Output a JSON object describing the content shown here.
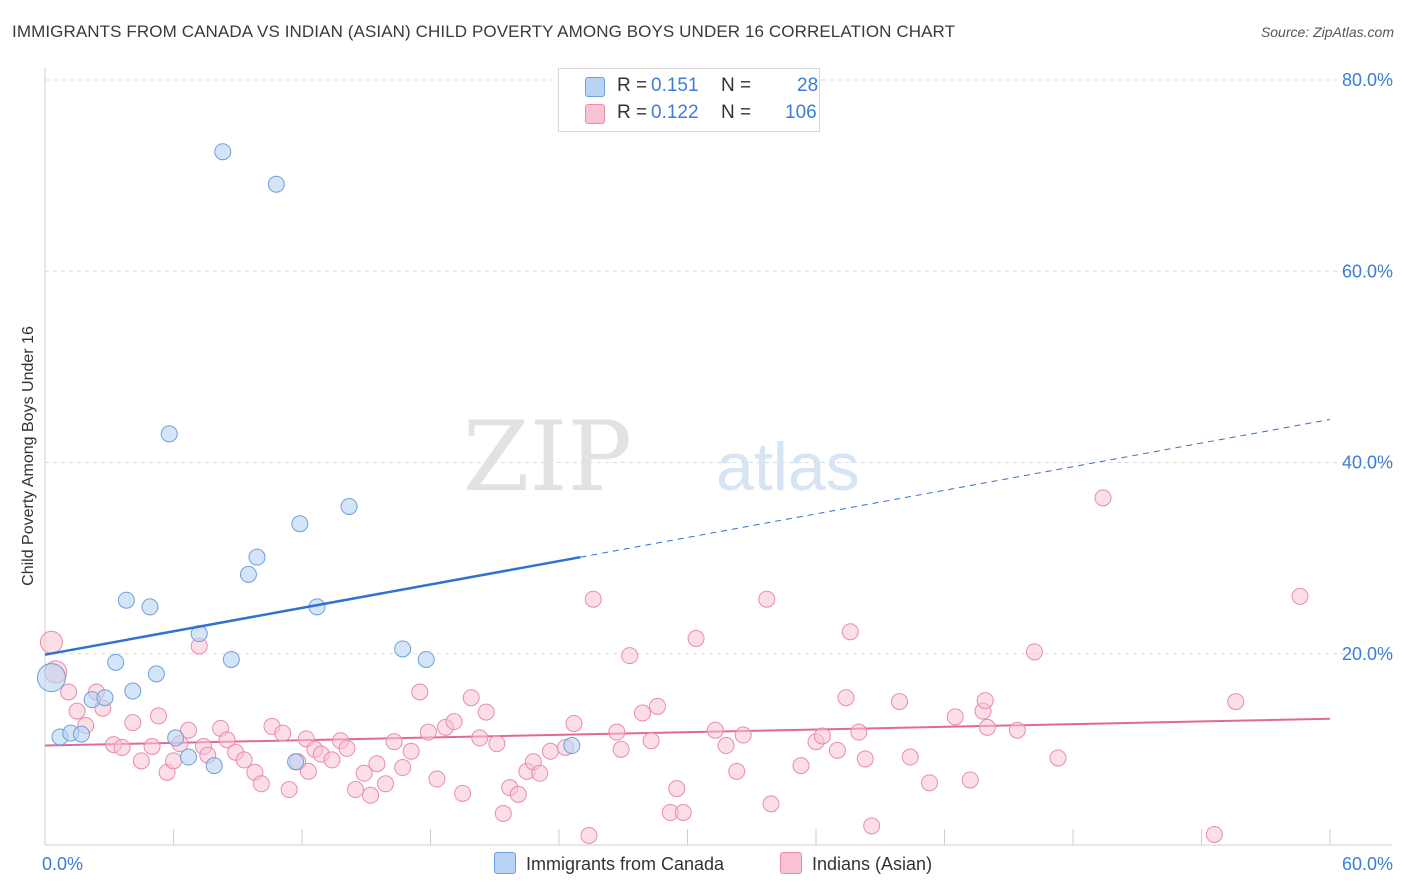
{
  "title": "IMMIGRANTS FROM CANADA VS INDIAN (ASIAN) CHILD POVERTY AMONG BOYS UNDER 16 CORRELATION CHART",
  "source": "Source: ZipAtlas.com",
  "watermark": {
    "zip": "ZIP",
    "atlas": "atlas"
  },
  "colors": {
    "series1_fill": "#b8d3f3",
    "series1_stroke": "#6f9fdc",
    "series1_line": "#2f72d0",
    "series2_fill": "#f9c3d3",
    "series2_stroke": "#e98cab",
    "series2_line": "#e2689a",
    "axis_label": "#3b7dd8",
    "grid": "#dcdcdc"
  },
  "legend": {
    "rows": [
      {
        "r_label": "R =",
        "r_value": "0.151",
        "n_label": "N =",
        "n_value": "28"
      },
      {
        "r_label": "R =",
        "r_value": "0.122",
        "n_label": "N =",
        "n_value": "106"
      }
    ]
  },
  "bottom_legend": {
    "series1": "Immigrants from Canada",
    "series2": "Indians (Asian)"
  },
  "chart_data": {
    "type": "scatter",
    "title": "IMMIGRANTS FROM CANADA VS INDIAN (ASIAN) CHILD POVERTY AMONG BOYS UNDER 16 CORRELATION CHART",
    "xlabel": "",
    "ylabel": "Child Poverty Among Boys Under 16",
    "xlim": [
      0,
      60
    ],
    "ylim": [
      0,
      80
    ],
    "x_tick_labels": [
      "0.0%",
      "60.0%"
    ],
    "y_tick_labels": [
      "20.0%",
      "40.0%",
      "60.0%",
      "80.0%"
    ],
    "y_ticks": [
      20,
      40,
      60,
      80
    ],
    "series": [
      {
        "name": "Immigrants from Canada",
        "points": [
          [
            0.3,
            17.5
          ],
          [
            0.7,
            11.3
          ],
          [
            1.2,
            11.7
          ],
          [
            1.7,
            11.6
          ],
          [
            2.2,
            15.2
          ],
          [
            2.8,
            15.4
          ],
          [
            3.3,
            19.1
          ],
          [
            3.8,
            25.6
          ],
          [
            4.1,
            16.1
          ],
          [
            4.9,
            24.9
          ],
          [
            5.2,
            17.9
          ],
          [
            5.8,
            43.0
          ],
          [
            6.1,
            11.2
          ],
          [
            6.7,
            9.2
          ],
          [
            7.2,
            22.1
          ],
          [
            7.9,
            8.3
          ],
          [
            8.3,
            72.5
          ],
          [
            8.7,
            19.4
          ],
          [
            9.5,
            28.3
          ],
          [
            9.9,
            30.1
          ],
          [
            10.8,
            69.1
          ],
          [
            11.7,
            8.7
          ],
          [
            11.9,
            33.6
          ],
          [
            12.7,
            24.9
          ],
          [
            14.2,
            35.4
          ],
          [
            16.7,
            20.5
          ],
          [
            17.8,
            19.4
          ],
          [
            24.6,
            10.4
          ]
        ],
        "trend": {
          "x": [
            0,
            25
          ],
          "y": [
            19.9,
            30.1
          ],
          "dashed_to": [
            60,
            44.5
          ]
        }
      },
      {
        "name": "Indians (Asian)",
        "points": [
          [
            0.3,
            21.2
          ],
          [
            0.5,
            18.1
          ],
          [
            1.1,
            16.0
          ],
          [
            1.5,
            14.0
          ],
          [
            1.9,
            12.5
          ],
          [
            2.4,
            16.0
          ],
          [
            2.7,
            14.3
          ],
          [
            3.2,
            10.5
          ],
          [
            3.6,
            10.2
          ],
          [
            4.1,
            12.8
          ],
          [
            4.5,
            8.8
          ],
          [
            5.0,
            10.3
          ],
          [
            5.3,
            13.5
          ],
          [
            5.7,
            7.6
          ],
          [
            6.0,
            8.8
          ],
          [
            6.3,
            10.6
          ],
          [
            6.7,
            12.0
          ],
          [
            7.2,
            20.8
          ],
          [
            7.4,
            10.3
          ],
          [
            7.6,
            9.4
          ],
          [
            8.2,
            12.2
          ],
          [
            8.5,
            11.0
          ],
          [
            8.9,
            9.7
          ],
          [
            9.3,
            8.9
          ],
          [
            9.8,
            7.6
          ],
          [
            10.1,
            6.4
          ],
          [
            10.6,
            12.4
          ],
          [
            11.1,
            11.7
          ],
          [
            11.4,
            5.8
          ],
          [
            11.8,
            8.7
          ],
          [
            12.2,
            11.1
          ],
          [
            12.6,
            10.0
          ],
          [
            12.9,
            9.5
          ],
          [
            13.4,
            8.9
          ],
          [
            13.8,
            10.9
          ],
          [
            14.1,
            10.1
          ],
          [
            14.5,
            5.8
          ],
          [
            14.9,
            7.5
          ],
          [
            15.2,
            5.2
          ],
          [
            15.5,
            8.5
          ],
          [
            15.9,
            6.4
          ],
          [
            16.3,
            10.8
          ],
          [
            16.7,
            8.1
          ],
          [
            17.1,
            9.8
          ],
          [
            17.5,
            16.0
          ],
          [
            17.9,
            11.8
          ],
          [
            18.3,
            6.9
          ],
          [
            18.7,
            12.3
          ],
          [
            19.1,
            12.9
          ],
          [
            19.5,
            5.4
          ],
          [
            19.9,
            15.4
          ],
          [
            20.3,
            11.2
          ],
          [
            20.6,
            13.9
          ],
          [
            21.1,
            10.6
          ],
          [
            21.4,
            3.3
          ],
          [
            21.7,
            6.0
          ],
          [
            22.1,
            5.3
          ],
          [
            22.5,
            7.7
          ],
          [
            22.8,
            8.7
          ],
          [
            23.1,
            7.5
          ],
          [
            23.6,
            9.8
          ],
          [
            24.3,
            10.2
          ],
          [
            24.7,
            12.7
          ],
          [
            25.4,
            1.0
          ],
          [
            25.6,
            25.7
          ],
          [
            26.7,
            11.8
          ],
          [
            26.9,
            10.0
          ],
          [
            27.3,
            19.8
          ],
          [
            27.9,
            13.8
          ],
          [
            28.3,
            10.9
          ],
          [
            28.6,
            14.5
          ],
          [
            29.2,
            3.4
          ],
          [
            29.5,
            5.9
          ],
          [
            29.8,
            3.4
          ],
          [
            30.4,
            21.6
          ],
          [
            31.3,
            12.0
          ],
          [
            31.8,
            10.4
          ],
          [
            32.3,
            7.7
          ],
          [
            32.6,
            11.5
          ],
          [
            33.7,
            25.7
          ],
          [
            33.9,
            4.3
          ],
          [
            35.3,
            8.3
          ],
          [
            36.0,
            10.8
          ],
          [
            36.3,
            11.4
          ],
          [
            37.0,
            9.9
          ],
          [
            37.4,
            15.4
          ],
          [
            37.6,
            22.3
          ],
          [
            38.0,
            11.8
          ],
          [
            38.3,
            9.0
          ],
          [
            38.6,
            2.0
          ],
          [
            39.9,
            15.0
          ],
          [
            40.4,
            9.2
          ],
          [
            41.3,
            6.5
          ],
          [
            42.5,
            13.4
          ],
          [
            43.2,
            6.8
          ],
          [
            43.8,
            14.0
          ],
          [
            43.9,
            15.1
          ],
          [
            45.4,
            12.0
          ],
          [
            46.2,
            20.2
          ],
          [
            47.3,
            9.1
          ],
          [
            49.4,
            36.3
          ],
          [
            54.6,
            1.1
          ],
          [
            55.6,
            15.0
          ],
          [
            58.6,
            26.0
          ],
          [
            44.0,
            12.3
          ],
          [
            12.3,
            7.7
          ]
        ],
        "trend": {
          "x": [
            0,
            60
          ],
          "y": [
            10.4,
            13.2
          ]
        }
      }
    ]
  }
}
